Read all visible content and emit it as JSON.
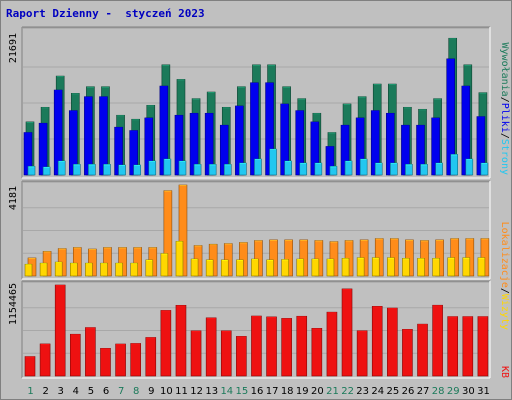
{
  "title": "Raport Dzienny -  styczeń 2023",
  "colors": {
    "background": "#c0c0c0",
    "title": "#0000c0",
    "hits": "#1b7a5a",
    "files": "#0000ee",
    "pages": "#22c7f0",
    "visits": "#ff8c1a",
    "sites": "#ffd700",
    "kbytes": "#ee1111",
    "day_normal": "#000000",
    "day_weekend": "#1b7a5a"
  },
  "chart_data": [
    {
      "type": "bar",
      "name": "hits-files-pages",
      "categories": [
        "1",
        "2",
        "3",
        "4",
        "5",
        "6",
        "7",
        "8",
        "9",
        "10",
        "11",
        "12",
        "13",
        "14",
        "15",
        "16",
        "17",
        "18",
        "19",
        "20",
        "21",
        "22",
        "23",
        "24",
        "25",
        "26",
        "27",
        "28",
        "29",
        "30",
        "31"
      ],
      "ylabel": "21691",
      "ylim": [
        0,
        21691
      ],
      "right_labels": [
        "Wywołania",
        "Pliki",
        "Strony"
      ],
      "separator": "/",
      "series": [
        {
          "name": "Wywołania",
          "values": [
            8000,
            10200,
            14900,
            12300,
            13300,
            13300,
            9000,
            8400,
            10500,
            16600,
            14400,
            11500,
            12500,
            10200,
            13300,
            16600,
            16600,
            13300,
            11500,
            9300,
            6400,
            10700,
            11800,
            13700,
            13700,
            10200,
            9900,
            11500,
            20600,
            16600,
            12400
          ]
        },
        {
          "name": "Pliki",
          "values": [
            6400,
            7800,
            12800,
            9700,
            11800,
            11800,
            7200,
            6700,
            8600,
            13400,
            9000,
            9300,
            9300,
            7500,
            10400,
            13900,
            13900,
            10700,
            9700,
            8000,
            4300,
            7500,
            8600,
            9700,
            9300,
            7500,
            7500,
            8600,
            17500,
            13400,
            8800
          ]
        },
        {
          "name": "Strony",
          "values": [
            1300,
            1200,
            2100,
            1600,
            1600,
            1600,
            1500,
            1500,
            2100,
            2400,
            2100,
            1600,
            1600,
            1600,
            1800,
            2400,
            3900,
            2100,
            1800,
            1800,
            1300,
            2100,
            2400,
            1800,
            1800,
            1600,
            1600,
            1800,
            3100,
            2400,
            1800
          ]
        }
      ]
    },
    {
      "type": "bar",
      "name": "visits-sites",
      "categories": [
        "1",
        "2",
        "3",
        "4",
        "5",
        "6",
        "7",
        "8",
        "9",
        "10",
        "11",
        "12",
        "13",
        "14",
        "15",
        "16",
        "17",
        "18",
        "19",
        "20",
        "21",
        "22",
        "23",
        "24",
        "25",
        "26",
        "27",
        "28",
        "29",
        "30",
        "31"
      ],
      "ylabel": "4181",
      "ylim": [
        0,
        4181
      ],
      "right_labels": [
        "Lokalizacje",
        "Wizyty"
      ],
      "separator": "/",
      "series": [
        {
          "name": "Lokalizacje",
          "values": [
            830,
            1130,
            1260,
            1310,
            1240,
            1310,
            1310,
            1310,
            1310,
            3920,
            4181,
            1400,
            1460,
            1490,
            1540,
            1630,
            1660,
            1660,
            1660,
            1630,
            1580,
            1630,
            1660,
            1720,
            1720,
            1660,
            1630,
            1660,
            1720,
            1720,
            1720
          ]
        },
        {
          "name": "Wizyty",
          "values": [
            540,
            590,
            640,
            590,
            590,
            590,
            590,
            590,
            740,
            1030,
            1590,
            780,
            740,
            740,
            740,
            780,
            740,
            760,
            780,
            780,
            780,
            810,
            840,
            840,
            840,
            810,
            810,
            810,
            840,
            840,
            840
          ]
        }
      ]
    },
    {
      "type": "bar",
      "name": "kbytes",
      "categories": [
        "1",
        "2",
        "3",
        "4",
        "5",
        "6",
        "7",
        "8",
        "9",
        "10",
        "11",
        "12",
        "13",
        "14",
        "15",
        "16",
        "17",
        "18",
        "19",
        "20",
        "21",
        "22",
        "23",
        "24",
        "25",
        "26",
        "27",
        "28",
        "29",
        "30",
        "31"
      ],
      "ylabel": "1154465",
      "ylim": [
        0,
        1154465
      ],
      "right_labels": [
        "KB"
      ],
      "series": [
        {
          "name": "KB",
          "values": [
            247000,
            407000,
            1154465,
            530000,
            615000,
            351000,
            406000,
            413000,
            489000,
            832000,
            897000,
            573000,
            738000,
            573000,
            503000,
            761000,
            750000,
            731000,
            758000,
            605000,
            810000,
            1105000,
            574000,
            884000,
            862000,
            592000,
            658000,
            898000,
            754000,
            754000,
            754000
          ]
        }
      ]
    }
  ],
  "weekend_days": [
    1,
    7,
    8,
    14,
    15,
    21,
    22,
    28,
    29
  ]
}
